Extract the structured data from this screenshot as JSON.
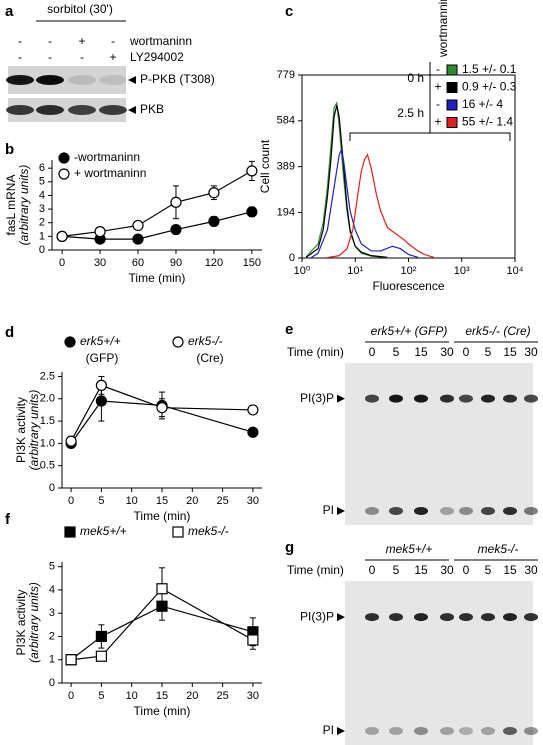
{
  "blots": [
    {
      "label": "a",
      "treatment": "sorbitol (30')",
      "rows": [
        {
          "name": "wortmaninn",
          "signs": [
            "-",
            "-",
            "+",
            "-"
          ]
        },
        {
          "name": "LY294002",
          "signs": [
            "-",
            "-",
            "-",
            "+"
          ]
        }
      ],
      "bands": [
        "P-PKB (T308)",
        "PKB"
      ]
    },
    {
      "label": "e",
      "groups": [
        "erk5+/+ (GFP)",
        "erk5-/- (Cre)"
      ],
      "time_label": "Time (min)",
      "times": [
        "0",
        "5",
        "15",
        "30",
        "0",
        "5",
        "15",
        "30"
      ],
      "spots": [
        "PI(3)P",
        "PI"
      ]
    },
    {
      "label": "g",
      "groups": [
        "mek5+/+",
        "mek5-/-"
      ],
      "time_label": "Time (min)",
      "times": [
        "0",
        "5",
        "15",
        "30",
        "0",
        "5",
        "15",
        "30"
      ],
      "spots": [
        "PI(3)P",
        "PI"
      ]
    }
  ],
  "chart_data": [
    {
      "label": "b",
      "type": "line",
      "x": [
        0,
        30,
        60,
        90,
        120,
        150
      ],
      "xlim": [
        -8,
        158
      ],
      "xticks": [
        0,
        30,
        60,
        90,
        120,
        150
      ],
      "ylim": [
        0,
        6.6
      ],
      "yticks": [
        0,
        1,
        2,
        3,
        4,
        5,
        6
      ],
      "xlabel": "Time (min)",
      "ylabel": [
        "fasL mRNA",
        "(arbitrary units)"
      ],
      "legend": "upper left",
      "series": [
        {
          "name": "-wortmaninn",
          "marker": "circle",
          "color": "#000000",
          "values": [
            1,
            0.8,
            0.8,
            1.5,
            2.1,
            2.8
          ],
          "errors": [
            0,
            0.1,
            0.1,
            0.3,
            0.35,
            0.35
          ]
        },
        {
          "name": "+ wortmaninn",
          "marker": "circle",
          "color": "#ffffff",
          "values": [
            1,
            1.35,
            1.8,
            3.5,
            4.2,
            5.8
          ],
          "errors": [
            0,
            0.1,
            0.15,
            1.2,
            0.5,
            0.7
          ]
        }
      ]
    },
    {
      "label": "c",
      "type": "line",
      "xscale": "log",
      "frame": true,
      "xlim": [
        1,
        10000
      ],
      "xticks": [
        {
          "value": 1,
          "label": "10⁰"
        },
        {
          "value": 10,
          "label": "10¹"
        },
        {
          "value": 100,
          "label": "10²"
        },
        {
          "value": 1000,
          "label": "10³"
        },
        {
          "value": 10000,
          "label": "10⁴"
        }
      ],
      "ylim": [
        0,
        779
      ],
      "yticks": [
        0,
        194,
        389,
        584,
        779
      ],
      "xlabel": "Fluorescence",
      "ylabel": "Cell count",
      "legend_title": "wortmannin",
      "legend_groups": [
        {
          "label": "0 h",
          "signs": [
            "-",
            "+"
          ]
        },
        {
          "label": "2.5 h",
          "signs": [
            "-",
            "+"
          ]
        }
      ],
      "series": [
        {
          "name": "1.5 +/- 0.1",
          "color": "#2e8b2e",
          "x": [
            1.2,
            2,
            2.5,
            3,
            3.5,
            4,
            4.5,
            5,
            6,
            7,
            8,
            10,
            13,
            20,
            40
          ],
          "values": [
            5,
            60,
            150,
            300,
            480,
            640,
            660,
            560,
            350,
            200,
            110,
            50,
            20,
            8,
            2
          ]
        },
        {
          "name": "0.9 +/- 0.3",
          "color": "#000000",
          "x": [
            1.2,
            2,
            2.5,
            3,
            3.5,
            4,
            4.5,
            5,
            6,
            7,
            8,
            10,
            13,
            20,
            40
          ],
          "values": [
            3,
            40,
            120,
            260,
            420,
            600,
            650,
            600,
            400,
            220,
            120,
            50,
            25,
            10,
            3
          ]
        },
        {
          "name": "16 +/- 4",
          "color": "#2020c0",
          "x": [
            1.5,
            2,
            3,
            4,
            5,
            5.5,
            6,
            7,
            8,
            10,
            13,
            20,
            30,
            50,
            70,
            100,
            150
          ],
          "values": [
            2,
            20,
            120,
            300,
            440,
            460,
            420,
            300,
            200,
            120,
            60,
            30,
            30,
            50,
            40,
            15,
            3
          ]
        },
        {
          "name": "55 +/- 1.4",
          "color": "#e02020",
          "x": [
            3,
            5,
            7,
            9,
            11,
            13,
            15,
            17,
            20,
            25,
            30,
            40,
            60,
            80,
            100,
            150,
            200,
            300
          ],
          "values": [
            2,
            10,
            40,
            120,
            260,
            370,
            420,
            440,
            380,
            270,
            200,
            130,
            100,
            80,
            60,
            30,
            15,
            3
          ]
        }
      ]
    },
    {
      "label": "d",
      "type": "line",
      "x": [
        0,
        5,
        15,
        30
      ],
      "xlim": [
        -1.5,
        31.5
      ],
      "xticks": [
        0,
        5,
        10,
        15,
        20,
        25,
        30
      ],
      "ylim": [
        0,
        2.6
      ],
      "yticks": [
        0,
        0.5,
        {
          "value": 1,
          "label": "1.0"
        },
        1.5,
        {
          "value": 2,
          "label": "2.0"
        },
        2.5
      ],
      "xlabel": "Time (min)",
      "ylabel": [
        "PI3K activity",
        "(arbitrary units)"
      ],
      "legend": "above",
      "series": [
        {
          "name": "erk5+/+",
          "sublabel": "(GFP)",
          "marker": "circle",
          "color": "#000000",
          "values": [
            1.0,
            1.95,
            1.85,
            1.25
          ],
          "errors": [
            0.05,
            0.45,
            0.3,
            0.05
          ]
        },
        {
          "name": "erk5-/-",
          "sublabel": "(Cre)",
          "marker": "circle",
          "color": "#ffffff",
          "values": [
            1.05,
            2.3,
            1.8,
            1.75
          ],
          "errors": [
            0.05,
            0.2,
            0.2,
            0.05
          ]
        }
      ]
    },
    {
      "label": "f",
      "type": "line",
      "x": [
        0,
        5,
        15,
        30
      ],
      "xlim": [
        -1.5,
        31.5
      ],
      "xticks": [
        0,
        5,
        10,
        15,
        20,
        25,
        30
      ],
      "ylim": [
        0,
        5.2
      ],
      "yticks": [
        0,
        1,
        2,
        3,
        4,
        5
      ],
      "xlabel": "Time (min)",
      "ylabel": [
        "PI3K activity",
        "(arbitrary units)"
      ],
      "legend": "above",
      "series": [
        {
          "name": "mek5+/+",
          "marker": "square",
          "color": "#000000",
          "values": [
            1,
            2,
            3.3,
            2.2
          ],
          "errors": [
            0.05,
            0.5,
            0.6,
            0.6
          ]
        },
        {
          "name": "mek5-/-",
          "marker": "square",
          "color": "#ffffff",
          "values": [
            1,
            1.15,
            4.05,
            1.85
          ],
          "errors": [
            0.05,
            0.2,
            0.9,
            0.4
          ]
        }
      ]
    }
  ]
}
